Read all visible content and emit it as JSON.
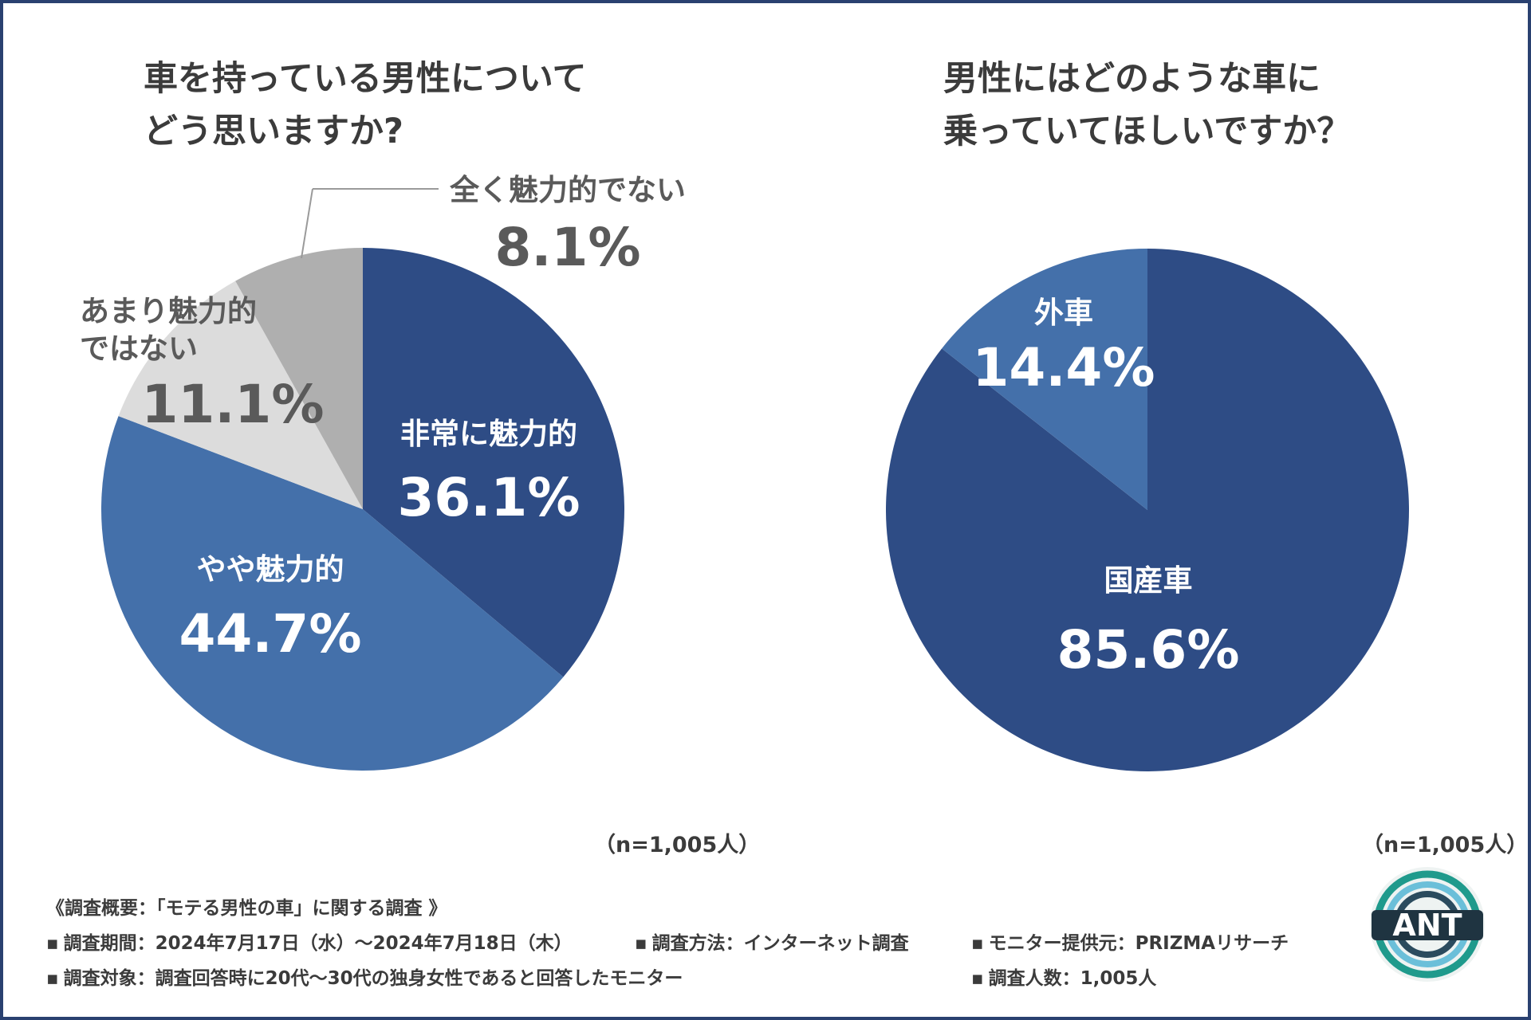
{
  "colors": {
    "dark_navy": "#2e4c85",
    "mid_blue": "#4470aa",
    "light_gray": "#dcdcdc",
    "mid_gray": "#afafaf",
    "frame": "#2a4170",
    "text": "#3b3b3b",
    "dim_text": "#5a5a5a"
  },
  "left": {
    "title_lines": [
      "車を持っている男性について",
      "どう思いますか?"
    ],
    "sample_note": "（n=1,005人）"
  },
  "right": {
    "title_lines": [
      "男性にはどのような車に",
      "乗っていてほしいですか？"
    ],
    "sample_note": "（n=1,005人）"
  },
  "chart_data": [
    {
      "type": "pie",
      "slices": [
        {
          "label": "非常に魅力的",
          "value": 36.1,
          "value_label": "36.1%",
          "color": "#2e4c85"
        },
        {
          "label": "やや魅力的",
          "value": 44.7,
          "value_label": "44.7%",
          "color": "#4470aa"
        },
        {
          "label": "あまり魅力的ではない",
          "label_lines": [
            "あまり魅力的",
            "ではない"
          ],
          "value": 11.1,
          "value_label": "11.1%",
          "color": "#dcdcdc"
        },
        {
          "label": "全く魅力的でない",
          "value": 8.1,
          "value_label": "8.1%",
          "color": "#afafaf"
        }
      ]
    },
    {
      "type": "pie",
      "slices": [
        {
          "label": "国産車",
          "value": 85.6,
          "value_label": "85.6%",
          "color": "#2e4c85"
        },
        {
          "label": "外車",
          "value": 14.4,
          "value_label": "14.4%",
          "color": "#4470aa"
        }
      ]
    }
  ],
  "survey": {
    "heading": "《調査概要：「モテる男性の車」に関する調査 》",
    "bullet": "▪",
    "period": "調査期間：2024年7月17日（水）～2024年7月18日（木）",
    "method": "調査方法：インターネット調査",
    "provider": "モニター提供元：PRIZMAリサーチ",
    "target": "調査対象：調査回答時に20代～30代の独身女性であると回答したモニター",
    "count": "調査人数：1,005人"
  },
  "logo": {
    "text": "ANT",
    "icon": "ant-logo-icon"
  }
}
